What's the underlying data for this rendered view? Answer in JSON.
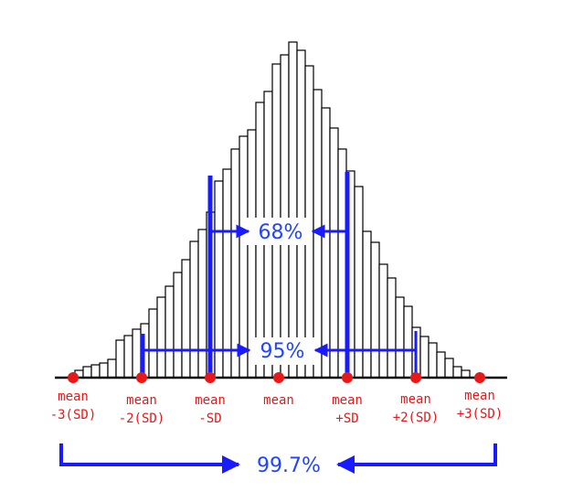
{
  "chart_data": {
    "type": "bar",
    "title": "",
    "xlabel": "",
    "ylabel": "",
    "bar_heights": [
      8,
      12,
      14,
      16,
      20,
      41,
      46,
      53,
      59,
      75,
      88,
      100,
      115,
      129,
      149,
      162,
      181,
      215,
      228,
      250,
      264,
      271,
      301,
      313,
      343,
      353,
      367,
      358,
      341,
      315,
      295,
      273,
      250,
      226,
      209,
      160,
      148,
      124,
      109,
      88,
      78,
      55,
      45,
      38,
      28,
      21,
      12,
      8
    ],
    "axis_points": [
      {
        "line1": "mean",
        "line2": "-3(SD)"
      },
      {
        "line1": "mean",
        "line2": "-2(SD)"
      },
      {
        "line1": "mean",
        "line2": "-SD"
      },
      {
        "line1": "mean",
        "line2": ""
      },
      {
        "line1": "mean",
        "line2": "+SD"
      },
      {
        "line1": "mean",
        "line2": "+2(SD)"
      },
      {
        "line1": "mean",
        "line2": "+3(SD)"
      }
    ],
    "intervals": [
      {
        "label": "68%",
        "from": "-SD",
        "to": "+SD"
      },
      {
        "label": "95%",
        "from": "-2(SD)",
        "to": "+2(SD)"
      },
      {
        "label": "99.7%",
        "from": "-3(SD)",
        "to": "+3(SD)"
      }
    ],
    "colors": {
      "bars_fill": "#ffffff",
      "bars_stroke": "#000000",
      "axis": "#000000",
      "points": "#e81818",
      "labels": "#e81818",
      "brackets": "#1a1aff",
      "percent_text": "#2244ff"
    }
  }
}
